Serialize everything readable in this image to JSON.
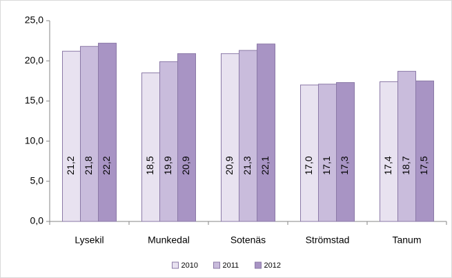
{
  "chart_data": {
    "type": "bar",
    "categories": [
      "Lysekil",
      "Munkedal",
      "Sotenäs",
      "Strömstad",
      "Tanum"
    ],
    "series": [
      {
        "name": "2010",
        "color": "#e8e2f0",
        "values": [
          21.2,
          18.5,
          20.9,
          17.0,
          17.4
        ],
        "value_labels": [
          "21,2",
          "18,5",
          "20,9",
          "17,0",
          "17,4"
        ]
      },
      {
        "name": "2011",
        "color": "#c9bcdc",
        "values": [
          21.8,
          19.9,
          21.3,
          17.1,
          18.7
        ],
        "value_labels": [
          "21,8",
          "19,9",
          "21,3",
          "17,1",
          "18,7"
        ]
      },
      {
        "name": "2012",
        "color": "#a894c4",
        "values": [
          22.2,
          20.9,
          22.1,
          17.3,
          17.5
        ],
        "value_labels": [
          "22,2",
          "20,9",
          "22,1",
          "17,3",
          "17,5"
        ]
      }
    ],
    "ylim": [
      0,
      25
    ],
    "yticks": [
      {
        "value": 0,
        "label": "0,0"
      },
      {
        "value": 5,
        "label": "5,0"
      },
      {
        "value": 10,
        "label": "10,0"
      },
      {
        "value": 15,
        "label": "15,0"
      },
      {
        "value": 20,
        "label": "20,0"
      },
      {
        "value": 25,
        "label": "25,0"
      }
    ],
    "grid": false,
    "legend": "bottom"
  }
}
